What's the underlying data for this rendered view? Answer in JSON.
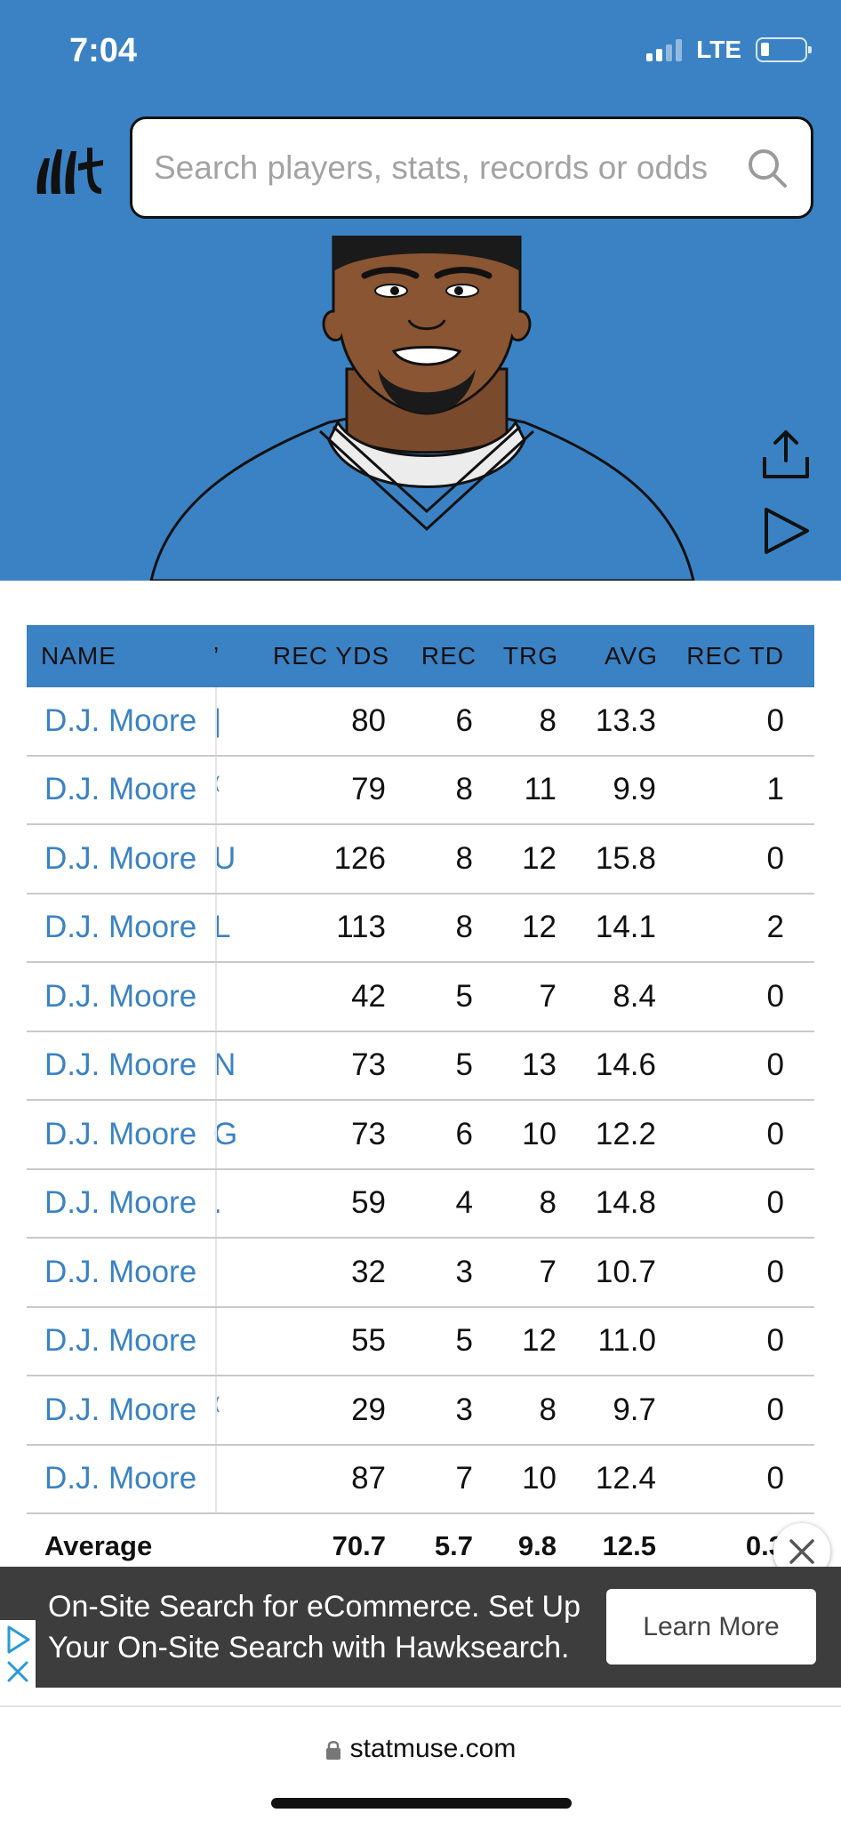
{
  "status": {
    "time": "7:04",
    "network": "LTE",
    "battery_level": 0.2
  },
  "search": {
    "placeholder": "Search players, stats, records or odds"
  },
  "table": {
    "headers": [
      "NAME",
      "REC YDS",
      "REC",
      "TRG",
      "AVG",
      "REC TD"
    ],
    "rows": [
      {
        "name": "D.J. Moore",
        "cut": "|",
        "rec_yds": "80",
        "rec": "6",
        "trg": "8",
        "avg": "13.3",
        "rec_td": "0"
      },
      {
        "name": "D.J. Moore",
        "cut": "⁽",
        "rec_yds": "79",
        "rec": "8",
        "trg": "11",
        "avg": "9.9",
        "rec_td": "1"
      },
      {
        "name": "D.J. Moore",
        "cut": "U",
        "rec_yds": "126",
        "rec": "8",
        "trg": "12",
        "avg": "15.8",
        "rec_td": "0"
      },
      {
        "name": "D.J. Moore",
        "cut": "L",
        "rec_yds": "113",
        "rec": "8",
        "trg": "12",
        "avg": "14.1",
        "rec_td": "2"
      },
      {
        "name": "D.J. Moore",
        "cut": "",
        "rec_yds": "42",
        "rec": "5",
        "trg": "7",
        "avg": "8.4",
        "rec_td": "0"
      },
      {
        "name": "D.J. Moore",
        "cut": "N",
        "rec_yds": "73",
        "rec": "5",
        "trg": "13",
        "avg": "14.6",
        "rec_td": "0"
      },
      {
        "name": "D.J. Moore",
        "cut": "G",
        "rec_yds": "73",
        "rec": "6",
        "trg": "10",
        "avg": "12.2",
        "rec_td": "0"
      },
      {
        "name": "D.J. Moore",
        "cut": ".",
        "rec_yds": "59",
        "rec": "4",
        "trg": "8",
        "avg": "14.8",
        "rec_td": "0"
      },
      {
        "name": "D.J. Moore",
        "cut": "",
        "rec_yds": "32",
        "rec": "3",
        "trg": "7",
        "avg": "10.7",
        "rec_td": "0"
      },
      {
        "name": "D.J. Moore",
        "cut": "",
        "rec_yds": "55",
        "rec": "5",
        "trg": "12",
        "avg": "11.0",
        "rec_td": "0"
      },
      {
        "name": "D.J. Moore",
        "cut": "⁽",
        "rec_yds": "29",
        "rec": "3",
        "trg": "8",
        "avg": "9.7",
        "rec_td": "0"
      },
      {
        "name": "D.J. Moore",
        "cut": "",
        "rec_yds": "87",
        "rec": "7",
        "trg": "10",
        "avg": "12.4",
        "rec_td": "0"
      }
    ],
    "average": {
      "label": "Average",
      "rec_yds": "70.7",
      "rec": "5.7",
      "trg": "9.8",
      "avg": "12.5",
      "rec_td": "0.3"
    }
  },
  "ad": {
    "text": "On-Site Search for eCommerce. Set Up Your On-Site Search with Hawksearch.",
    "button_label": "Learn More"
  },
  "browser": {
    "url": "statmuse.com"
  },
  "colors": {
    "brand_blue": "#3b82c4",
    "ad_background": "#3d3d3d"
  }
}
